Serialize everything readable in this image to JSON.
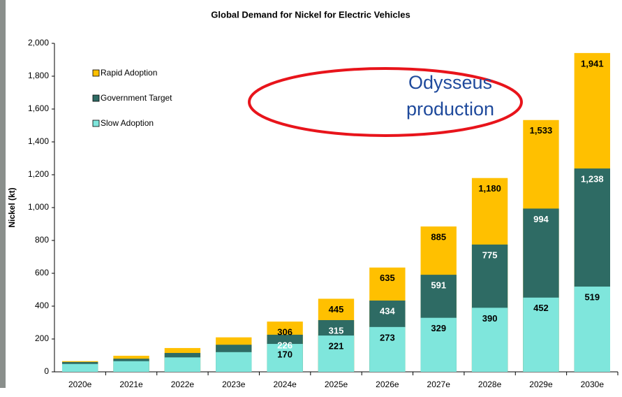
{
  "chart_data": {
    "type": "bar",
    "title": "Global Demand for Nickel for Electric Vehicles",
    "y_label": "Nickel (kt)",
    "annotation": [
      "Odysseus",
      "production"
    ],
    "categories": [
      "2020e",
      "2021e",
      "2022e",
      "2023e",
      "2024e",
      "2025e",
      "2026e",
      "2027e",
      "2028e",
      "2029e",
      "2030e"
    ],
    "series": [
      {
        "name": "Rapid Adoption",
        "color": "#ffc000",
        "values": [
          65,
          98,
          145,
          210,
          306,
          445,
          635,
          885,
          1180,
          1533,
          1941
        ],
        "value_labels": [
          null,
          null,
          null,
          null,
          "306",
          "445",
          "635",
          "885",
          "1,180",
          "1,533",
          "1,941"
        ]
      },
      {
        "name": "Government Target",
        "color": "#2e6b64",
        "values": [
          60,
          80,
          115,
          165,
          226,
          315,
          434,
          591,
          775,
          994,
          1238
        ],
        "value_labels": [
          null,
          null,
          null,
          null,
          "226",
          "315",
          "434",
          "591",
          "775",
          "994",
          "1,238"
        ]
      },
      {
        "name": "Slow Adoption",
        "color": "#7fe6dc",
        "values": [
          48,
          65,
          88,
          120,
          170,
          221,
          273,
          329,
          390,
          452,
          519
        ],
        "value_labels": [
          null,
          null,
          null,
          null,
          "170",
          "221",
          "273",
          "329",
          "390",
          "452",
          "519"
        ]
      }
    ],
    "ylim": [
      0,
      2000
    ],
    "yticks": [
      0,
      200,
      400,
      600,
      800,
      {
        "value": 1000,
        "label": "1,000"
      },
      {
        "value": 1200,
        "label": "1,200"
      },
      {
        "value": 1400,
        "label": "1,400"
      },
      {
        "value": 1600,
        "label": "1,600"
      },
      {
        "value": 1800,
        "label": "1,800"
      },
      {
        "value": 2000,
        "label": "2,000"
      }
    ],
    "legend": "upper left",
    "grid": false
  }
}
